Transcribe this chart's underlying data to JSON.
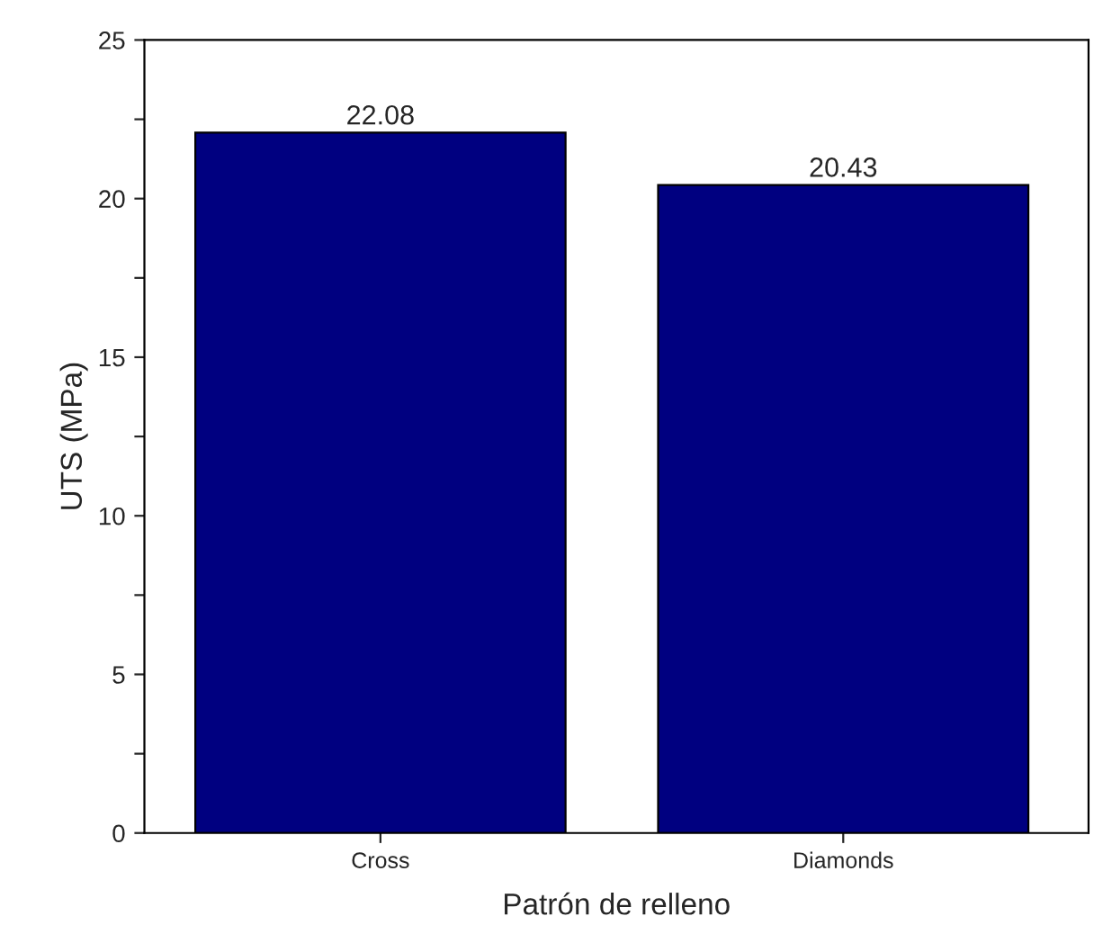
{
  "chart_data": {
    "type": "bar",
    "xlabel": "Patrón de relleno",
    "ylabel": "UTS (MPa)",
    "categories": [
      "Cross",
      "Diamonds"
    ],
    "series": [
      {
        "color": "#000080",
        "values": [
          22.08,
          20.43
        ]
      }
    ],
    "data_labels": true,
    "ylim": [
      0,
      25
    ],
    "yticks": [
      0,
      {
        "value": 2.5,
        "label": null
      },
      5,
      {
        "value": 7.5,
        "label": null
      },
      10,
      {
        "value": 12.5,
        "label": null
      },
      15,
      {
        "value": 17.5,
        "label": null
      },
      20,
      {
        "value": 22.5,
        "label": null
      },
      25
    ],
    "grid": false,
    "legend": false
  }
}
